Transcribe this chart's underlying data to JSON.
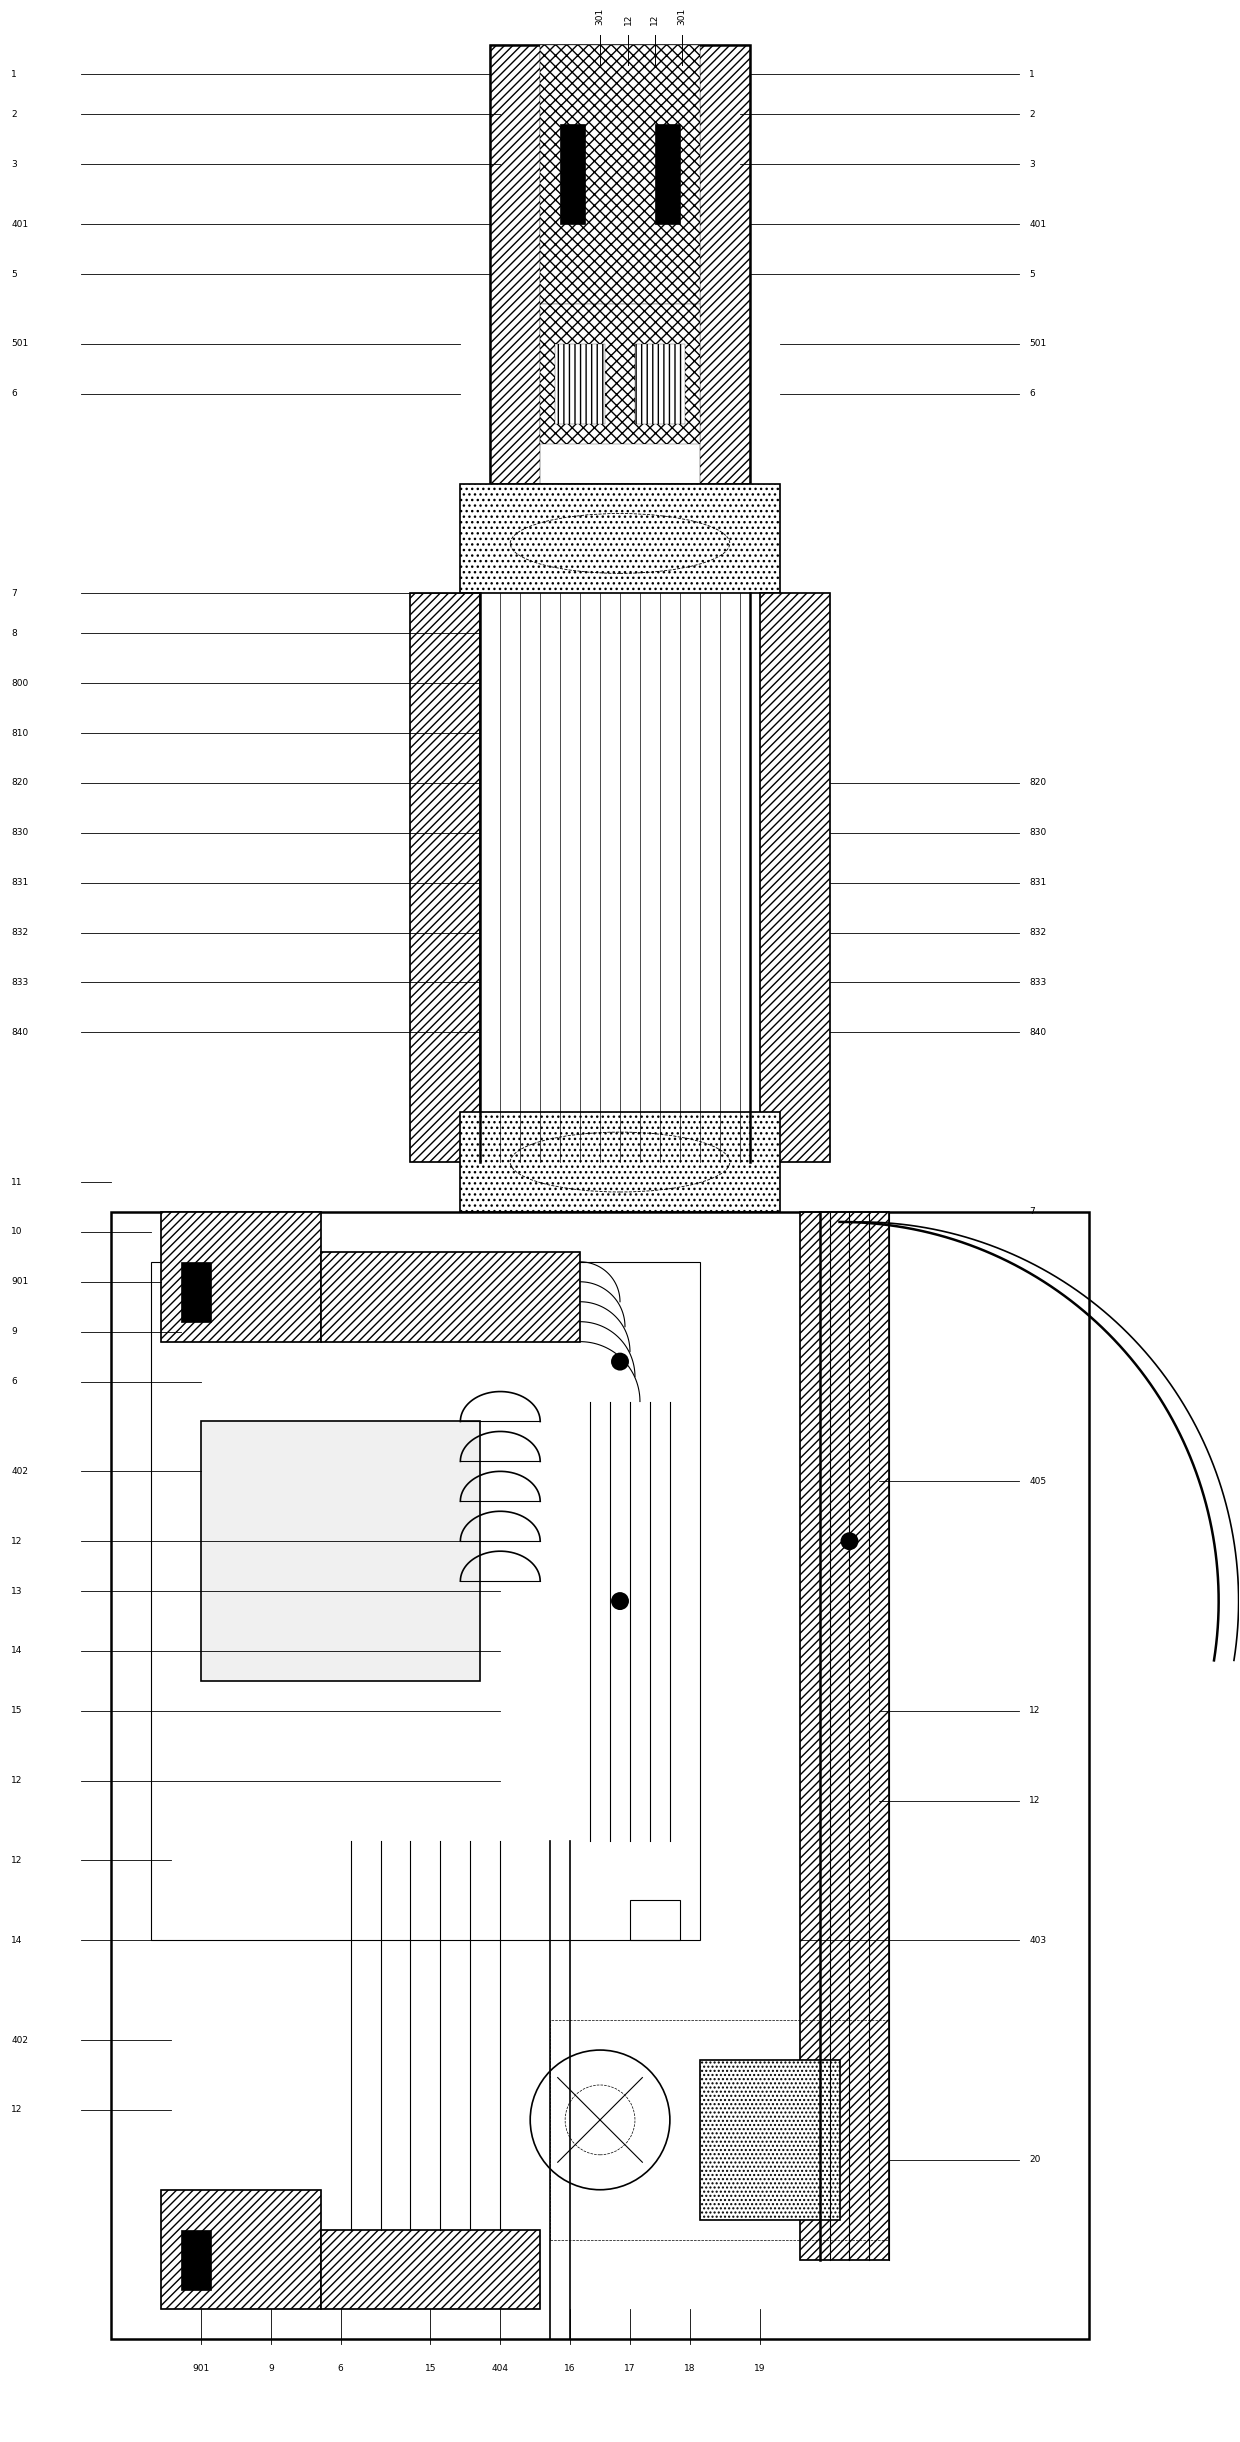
{
  "bg_color": "#ffffff",
  "fig_width": 12.4,
  "fig_height": 24.42,
  "dpi": 100
}
